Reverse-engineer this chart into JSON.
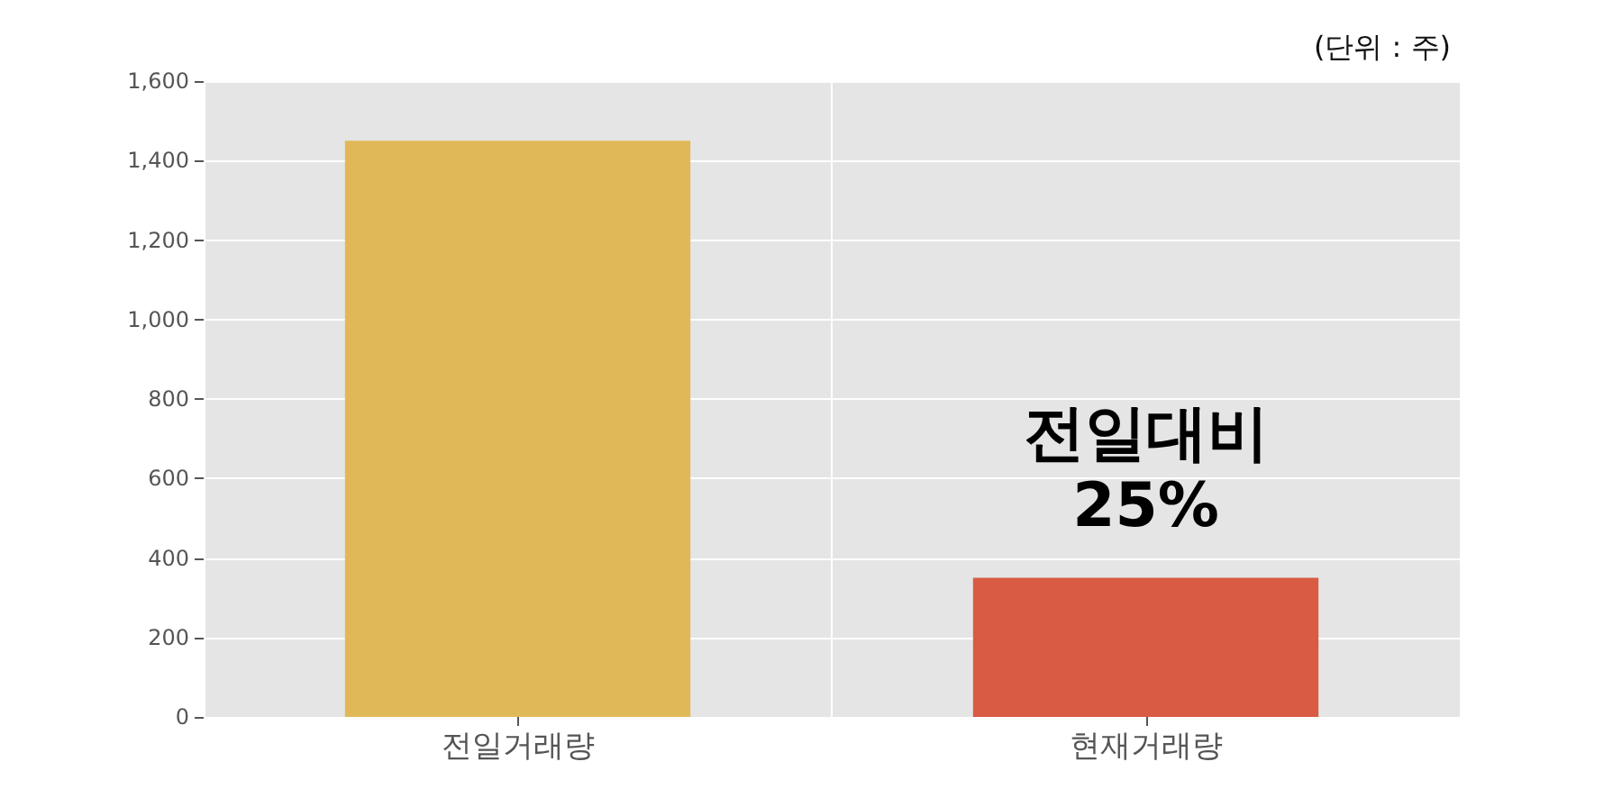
{
  "chart_data": {
    "type": "bar",
    "categories": [
      "전일거래량",
      "현재거래량"
    ],
    "values": [
      1450,
      350
    ],
    "colors": [
      "#e0b857",
      "#d95b43"
    ],
    "ylim": [
      0,
      1600
    ],
    "yticks": [
      {
        "value": 0,
        "label": "0"
      },
      {
        "value": 200,
        "label": "200"
      },
      {
        "value": 400,
        "label": "400"
      },
      {
        "value": 600,
        "label": "600"
      },
      {
        "value": 800,
        "label": "800"
      },
      {
        "value": 1000,
        "label": "1,000"
      },
      {
        "value": 1200,
        "label": "1,200"
      },
      {
        "value": 1400,
        "label": "1,400"
      },
      {
        "value": 1600,
        "label": "1,600"
      }
    ],
    "grid": true,
    "annotations": [
      "(단위 : 주)",
      "전일대비\n25%"
    ]
  }
}
